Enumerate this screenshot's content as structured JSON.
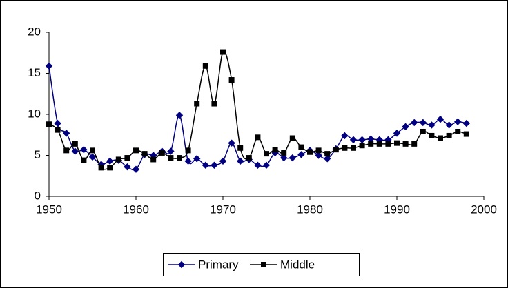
{
  "chart_data": {
    "type": "line",
    "x": [
      1950,
      1951,
      1952,
      1953,
      1954,
      1955,
      1956,
      1957,
      1958,
      1959,
      1960,
      1961,
      1962,
      1963,
      1964,
      1965,
      1966,
      1967,
      1968,
      1969,
      1970,
      1971,
      1972,
      1973,
      1974,
      1975,
      1976,
      1977,
      1978,
      1979,
      1980,
      1981,
      1982,
      1983,
      1984,
      1985,
      1986,
      1987,
      1988,
      1989,
      1990,
      1991,
      1992,
      1993,
      1994,
      1995,
      1996,
      1997,
      1998
    ],
    "series": [
      {
        "name": "Primary",
        "color": "#000080",
        "marker": "diamond",
        "values": [
          15.9,
          8.9,
          7.7,
          5.5,
          5.7,
          4.8,
          3.9,
          4.3,
          4.4,
          3.6,
          3.3,
          5.1,
          5.0,
          5.5,
          5.5,
          9.9,
          4.3,
          4.6,
          3.8,
          3.8,
          4.3,
          6.5,
          4.3,
          4.5,
          3.8,
          3.8,
          5.3,
          4.7,
          4.7,
          5.1,
          5.6,
          5.0,
          4.6,
          5.8,
          7.4,
          6.9,
          6.9,
          7.0,
          6.9,
          6.9,
          7.7,
          8.5,
          9.0,
          9.0,
          8.7,
          9.4,
          8.7,
          9.1,
          8.9
        ]
      },
      {
        "name": "Middle",
        "color": "#000000",
        "marker": "square",
        "values": [
          8.8,
          8.1,
          5.6,
          6.4,
          4.4,
          5.6,
          3.5,
          3.5,
          4.5,
          4.7,
          5.6,
          5.2,
          4.5,
          5.3,
          4.7,
          4.7,
          5.6,
          11.3,
          15.9,
          11.3,
          17.6,
          14.2,
          5.9,
          4.7,
          7.2,
          5.2,
          5.7,
          5.3,
          7.1,
          6.0,
          5.4,
          5.6,
          5.2,
          5.7,
          5.9,
          5.9,
          6.2,
          6.4,
          6.4,
          6.4,
          6.5,
          6.4,
          6.4,
          7.9,
          7.4,
          7.1,
          7.4,
          7.9,
          7.6
        ]
      }
    ],
    "xlim": [
      1950,
      2000
    ],
    "xticks": [
      1950,
      1960,
      1970,
      1980,
      1990,
      2000
    ],
    "ylim": [
      0,
      20
    ],
    "yticks": [
      0,
      5,
      10,
      15,
      20
    ],
    "grid": false,
    "legend": "bottom"
  }
}
